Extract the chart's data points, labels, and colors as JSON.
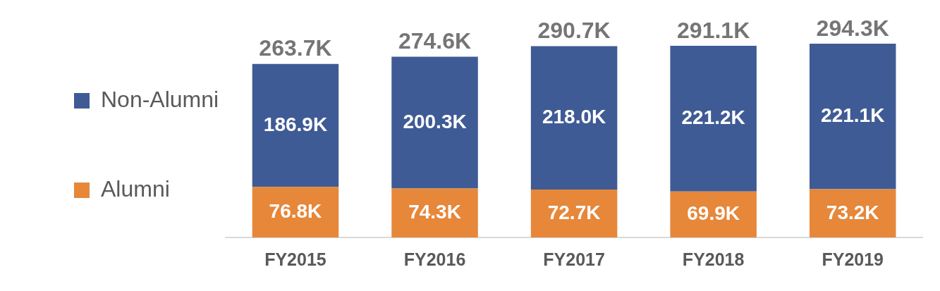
{
  "chart_data": {
    "type": "bar",
    "stacked": true,
    "legend": "left",
    "categories": [
      "FY2015",
      "FY2016",
      "FY2017",
      "FY2018",
      "FY2019"
    ],
    "series": [
      {
        "name": "Alumni",
        "color": "#e6873a",
        "values": [
          76.8,
          74.3,
          72.7,
          69.9,
          73.2
        ],
        "value_labels": [
          "76.8K",
          "74.3K",
          "72.7K",
          "69.9K",
          "73.2K"
        ]
      },
      {
        "name": "Non-Alumni",
        "color": "#3f5b95",
        "values": [
          186.9,
          200.3,
          218.0,
          221.2,
          221.1
        ],
        "value_labels": [
          "186.9K",
          "200.3K",
          "218.0K",
          "221.2K",
          "221.1K"
        ]
      }
    ],
    "totals": [
      "263.7K",
      "274.6K",
      "290.7K",
      "291.1K",
      "294.3K"
    ]
  }
}
